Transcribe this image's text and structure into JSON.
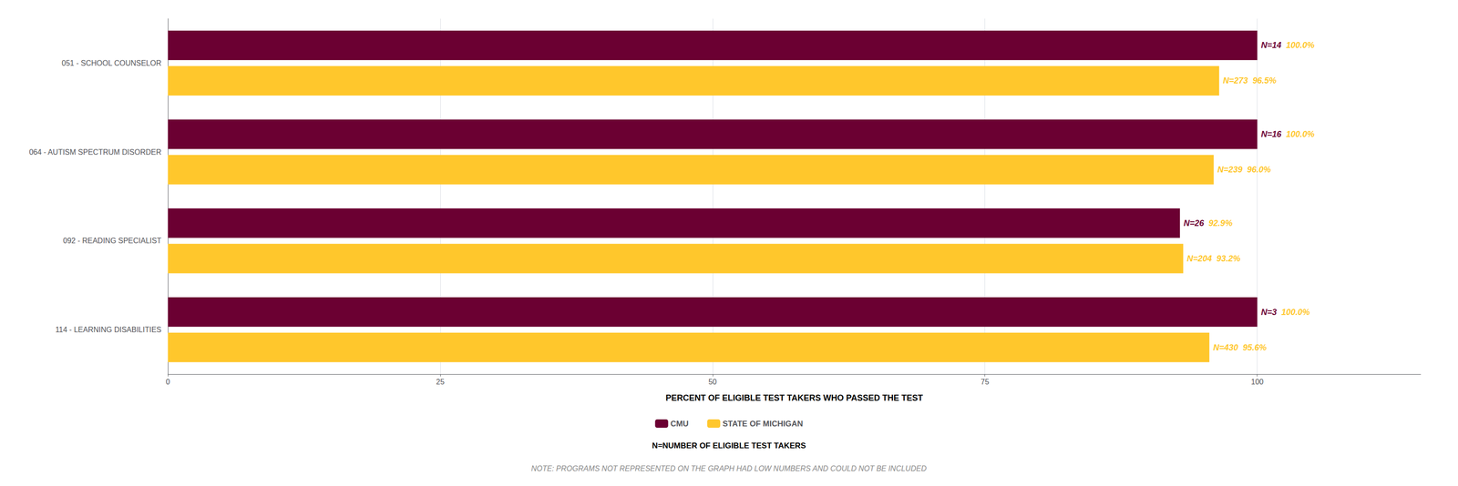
{
  "chart_data": {
    "type": "bar",
    "orientation": "horizontal",
    "categories": [
      "114 - LEARNING DISABILITIES",
      "092 - READING SPECIALIST",
      "064 - AUTISM SPECTRUM DISORDER",
      "051 - SCHOOL COUNSELOR"
    ],
    "series": [
      {
        "name": "CMU",
        "color": "#6B0032",
        "values": [
          100.0,
          92.9,
          100.0,
          100.0
        ],
        "value_labels": [
          "100.0%",
          "92.9%",
          "100.0%",
          "100.0%"
        ],
        "n_labels": [
          "N=3",
          "N=26",
          "N=16",
          "N=14"
        ]
      },
      {
        "name": "STATE OF MICHIGAN",
        "color": "#FFC72C",
        "values": [
          95.6,
          93.2,
          96.0,
          96.5
        ],
        "value_labels": [
          "95.6%",
          "93.2%",
          "96.0%",
          "96.5%"
        ],
        "n_labels": [
          "N=430",
          "N=204",
          "N=239",
          "N=273"
        ]
      }
    ],
    "xlabel": "PERCENT OF ELIGIBLE TEST TAKERS WHO PASSED THE TEST",
    "xlim": [
      0,
      115
    ],
    "xticks": [
      0,
      25,
      50,
      75,
      100
    ],
    "grid": true,
    "legend": "bottom",
    "data_labels": true,
    "annotations": [
      "N=NUMBER OF ELIGIBLE TEST TAKERS",
      "NOTE: PROGRAMS NOT REPRESENTED ON THE GRAPH HAD LOW NUMBERS AND COULD NOT BE INCLUDED"
    ]
  }
}
